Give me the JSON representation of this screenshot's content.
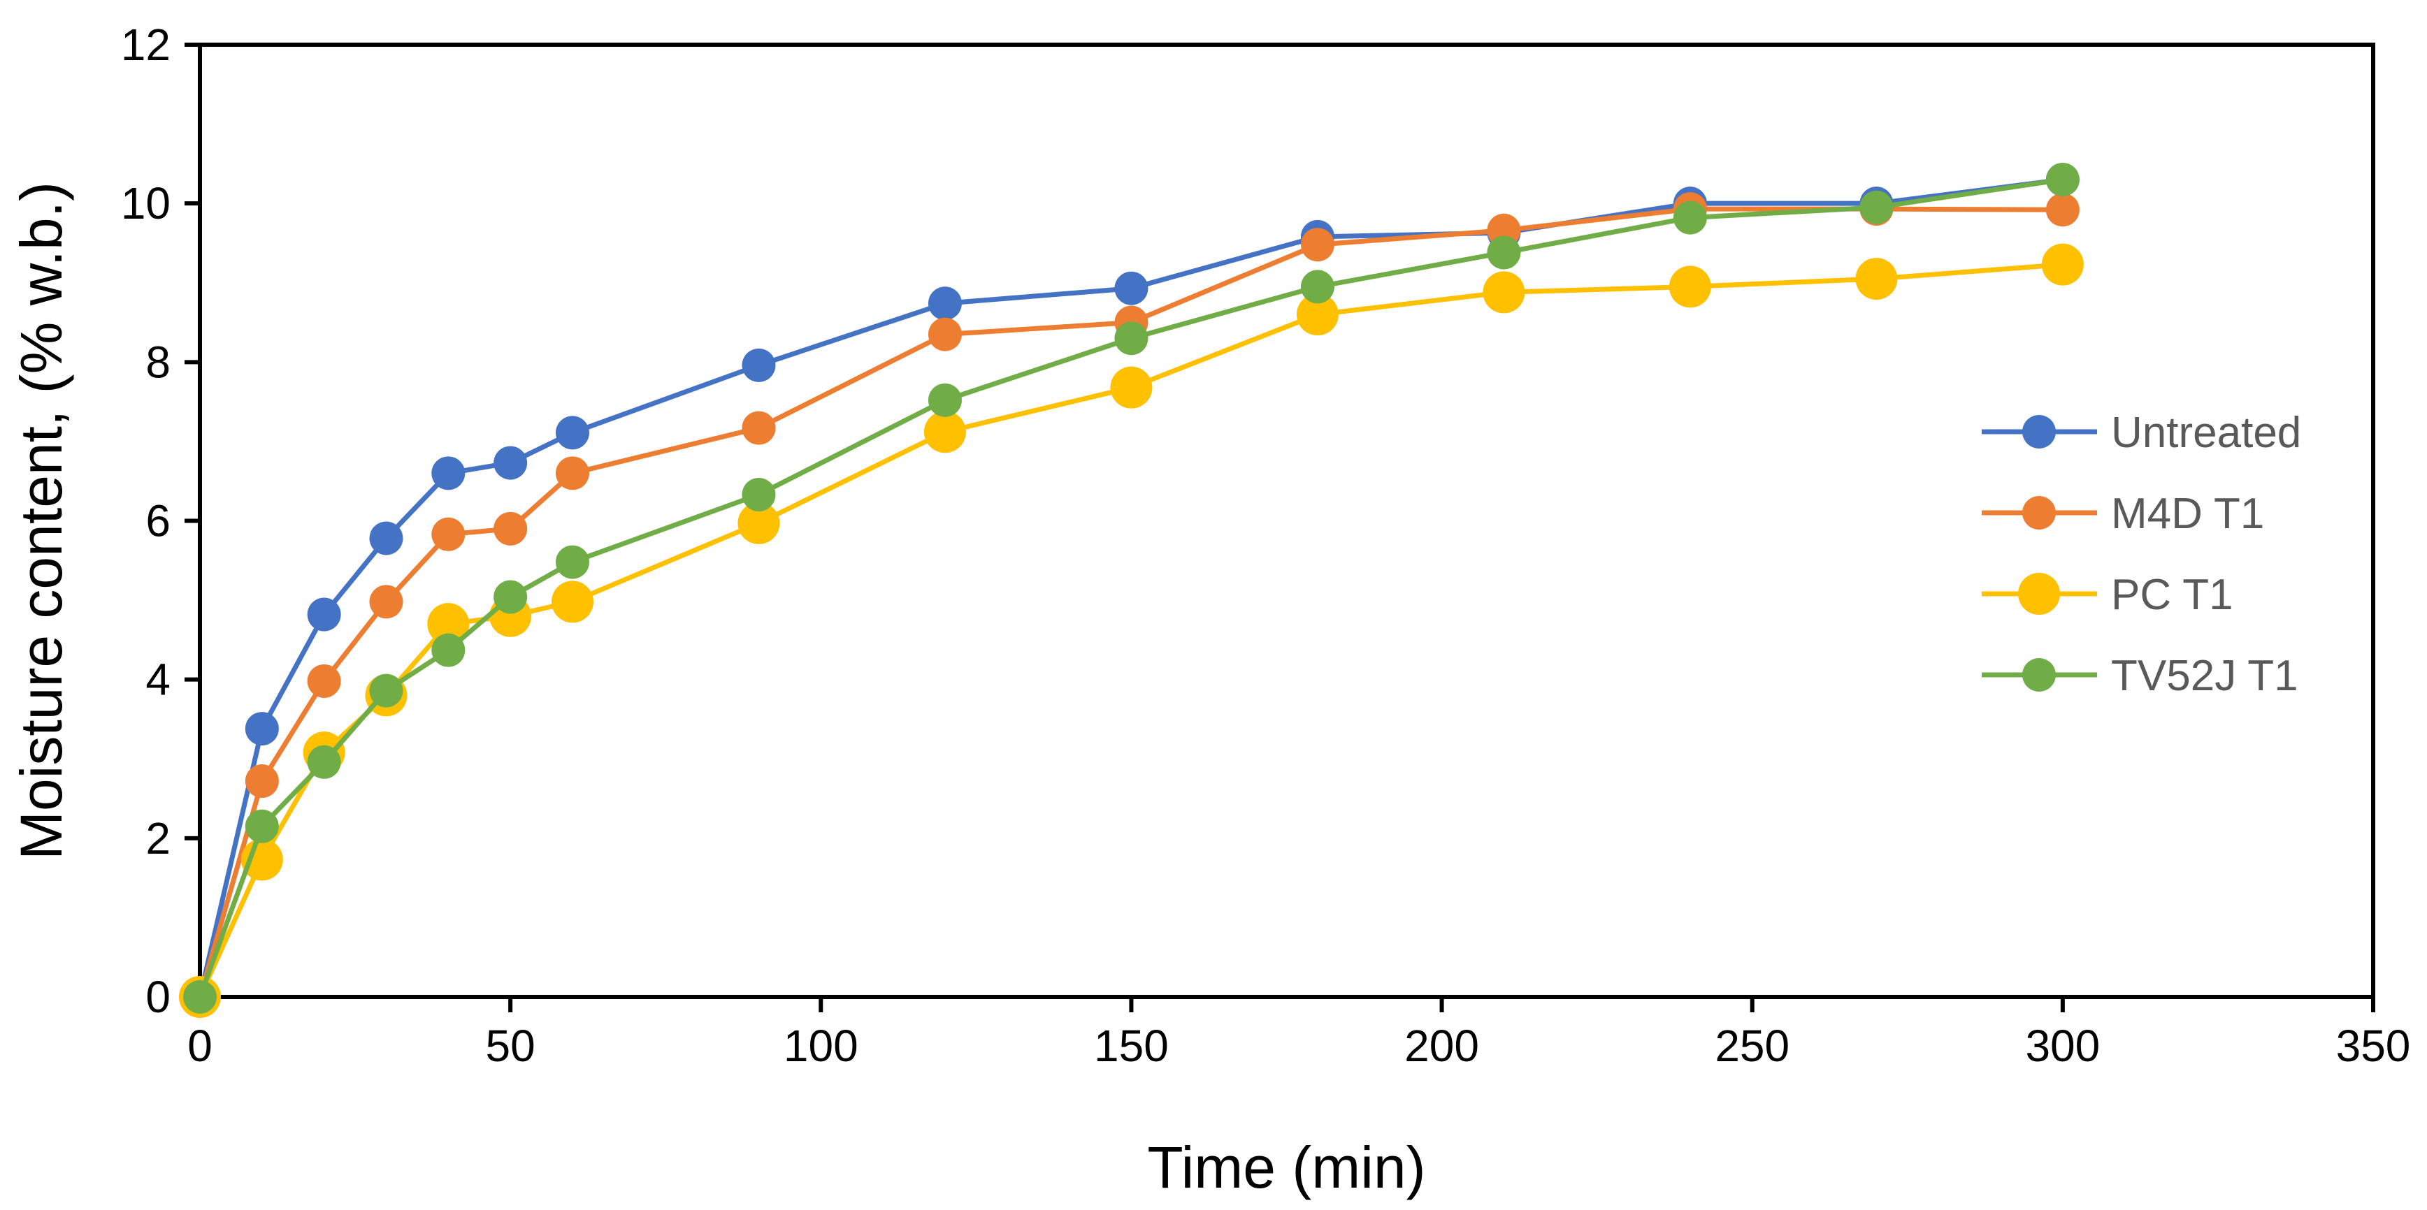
{
  "chart_data": {
    "type": "line",
    "title": "",
    "xlabel": "Time (min)",
    "ylabel": "Moisture content, (% w.b.)",
    "xlim": [
      0,
      350
    ],
    "ylim": [
      0,
      12
    ],
    "xticks": [
      0,
      50,
      100,
      150,
      200,
      250,
      300,
      350
    ],
    "yticks": [
      0,
      2,
      4,
      6,
      8,
      10,
      12
    ],
    "grid": false,
    "legend_position": "right",
    "x": [
      0,
      10,
      20,
      30,
      40,
      50,
      60,
      90,
      120,
      150,
      180,
      210,
      240,
      270,
      300
    ],
    "series": [
      {
        "name": "Untreated",
        "color": "#4472C4",
        "values": [
          0,
          3.38,
          4.82,
          5.78,
          6.6,
          6.73,
          7.11,
          7.96,
          8.74,
          8.93,
          9.58,
          9.63,
          10.0,
          10.0,
          10.3
        ]
      },
      {
        "name": "M4D T1",
        "color": "#ED7D31",
        "values": [
          0,
          2.72,
          3.98,
          4.98,
          5.83,
          5.9,
          6.6,
          7.17,
          8.35,
          8.5,
          9.48,
          9.66,
          9.93,
          9.93,
          9.92
        ]
      },
      {
        "name": "PC T1",
        "color": "#FFC000",
        "values": [
          0,
          1.73,
          3.08,
          3.8,
          4.7,
          4.8,
          4.98,
          5.97,
          7.12,
          7.68,
          8.6,
          8.88,
          8.95,
          9.05,
          9.23
        ]
      },
      {
        "name": "TV52J T1",
        "color": "#70AD47",
        "values": [
          0,
          2.15,
          2.96,
          3.86,
          4.37,
          5.04,
          5.48,
          6.33,
          7.52,
          8.3,
          8.95,
          9.38,
          9.82,
          9.95,
          10.3
        ]
      }
    ]
  }
}
